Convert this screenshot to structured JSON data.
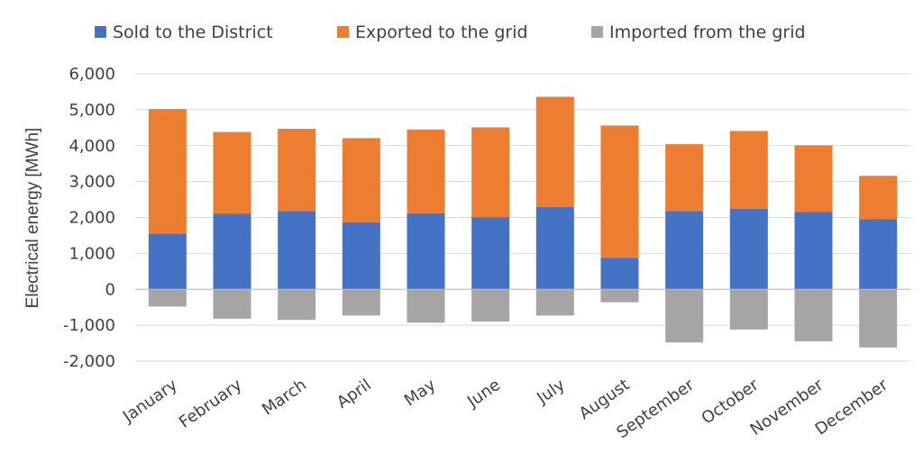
{
  "chart_data": {
    "type": "bar",
    "stacked": true,
    "title": "",
    "xlabel": "",
    "ylabel": "Electrical energy [MWh]",
    "ylim": [
      -2000,
      6000
    ],
    "yticks": [
      -2000,
      -1000,
      0,
      1000,
      2000,
      3000,
      4000,
      5000,
      6000
    ],
    "ytick_labels": [
      "-2,000",
      "-1,000",
      "0",
      "1,000",
      "2,000",
      "3,000",
      "4,000",
      "5,000",
      "6,000"
    ],
    "grid": true,
    "legend_position": "top",
    "categories": [
      "January",
      "February",
      "March",
      "April",
      "May",
      "June",
      "July",
      "August",
      "September",
      "October",
      "November",
      "December"
    ],
    "series": [
      {
        "name": "Sold to the District",
        "color": "#4472c4",
        "values": [
          1550,
          2100,
          2180,
          1870,
          2120,
          2010,
          2290,
          880,
          2180,
          2240,
          2150,
          1950
        ]
      },
      {
        "name": "Exported to the grid",
        "color": "#ed7d31",
        "values": [
          3470,
          2280,
          2290,
          2340,
          2330,
          2500,
          3070,
          3680,
          1860,
          2170,
          1860,
          1210
        ]
      },
      {
        "name": "Imported from the grid",
        "color": "#a5a5a5",
        "values": [
          -480,
          -820,
          -850,
          -730,
          -930,
          -900,
          -730,
          -360,
          -1480,
          -1120,
          -1450,
          -1620
        ]
      }
    ]
  }
}
